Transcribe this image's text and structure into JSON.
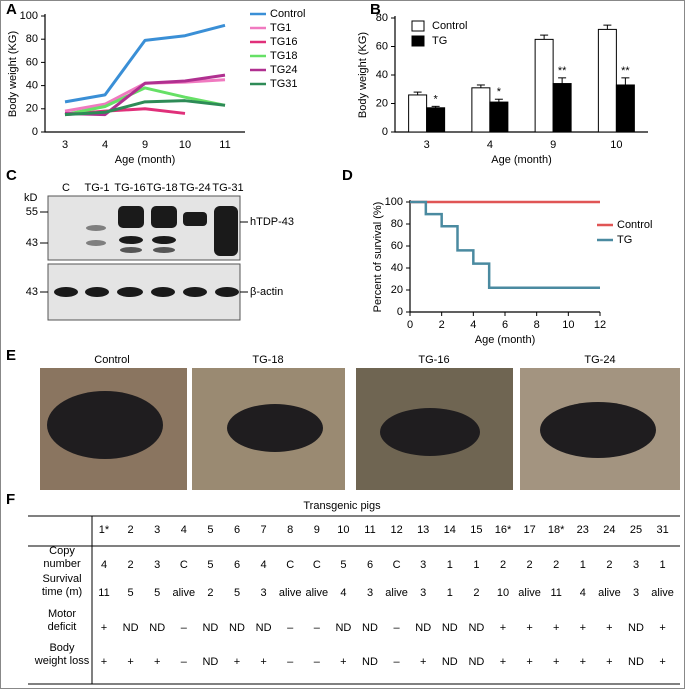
{
  "panel_labels": [
    "A",
    "B",
    "C",
    "D",
    "E",
    "F"
  ],
  "chart_data": [
    {
      "type": "line",
      "xlabel": "Age (month)",
      "ylabel": "Body weight (KG)",
      "categories": [
        "3",
        "4",
        "9",
        "10",
        "11"
      ],
      "ylim": [
        0,
        100
      ],
      "yticks": [
        0,
        20,
        40,
        60,
        80,
        100
      ],
      "series": [
        {
          "name": "Control",
          "color": "#3a8fd6",
          "values": [
            26,
            32,
            79,
            83,
            92
          ]
        },
        {
          "name": "TG1",
          "color": "#f07ac0",
          "values": [
            18,
            24,
            42,
            43,
            45
          ]
        },
        {
          "name": "TG16",
          "color": "#e0307a",
          "values": [
            15,
            18,
            20,
            16,
            null
          ]
        },
        {
          "name": "TG18",
          "color": "#66e066",
          "values": [
            15,
            22,
            38,
            30,
            23
          ]
        },
        {
          "name": "TG24",
          "color": "#b03090",
          "values": [
            16,
            15,
            42,
            44,
            49
          ]
        },
        {
          "name": "TG31",
          "color": "#2e8b57",
          "values": [
            15,
            17,
            26,
            27,
            23
          ]
        }
      ]
    },
    {
      "type": "bar",
      "xlabel": "Age (month)",
      "ylabel": "Body weight (KG)",
      "categories": [
        "3",
        "4",
        "9",
        "10"
      ],
      "ylim": [
        0,
        80
      ],
      "yticks": [
        0,
        20,
        40,
        60,
        80
      ],
      "annotations": [
        "*",
        "*",
        "**",
        "**"
      ],
      "series": [
        {
          "name": "Control",
          "color": "#ffffff",
          "values": [
            26,
            31,
            65,
            72
          ],
          "errors": [
            2,
            2,
            3,
            3
          ]
        },
        {
          "name": "TG",
          "color": "#000000",
          "values": [
            17,
            21,
            34,
            33
          ],
          "errors": [
            1,
            2,
            4,
            5
          ]
        }
      ]
    },
    {
      "type": "step",
      "xlabel": "Age (month)",
      "ylabel": "Percent of survival (%)",
      "xlim": [
        0,
        12
      ],
      "xticks": [
        0,
        2,
        4,
        6,
        8,
        10,
        12
      ],
      "ylim": [
        0,
        100
      ],
      "yticks": [
        0,
        20,
        40,
        60,
        80,
        100
      ],
      "series": [
        {
          "name": "Control",
          "color": "#e05555",
          "x": [
            0,
            12
          ],
          "values": [
            100,
            100
          ]
        },
        {
          "name": "TG",
          "color": "#4a8aa0",
          "x": [
            0,
            1,
            1,
            2,
            2,
            3,
            3,
            4,
            4,
            5,
            5,
            12
          ],
          "values": [
            100,
            100,
            89,
            89,
            78,
            78,
            56,
            56,
            44,
            44,
            22,
            22
          ]
        }
      ]
    }
  ],
  "blot": {
    "unit": "kD",
    "lanes": [
      "C",
      "TG-1",
      "TG-16",
      "TG-18",
      "TG-24",
      "TG-31"
    ],
    "markers": [
      "55",
      "43",
      "43"
    ],
    "targets": [
      "hTDP-43",
      "β-actin"
    ]
  },
  "photos": {
    "labels": [
      "Control",
      "TG-18",
      "TG-16",
      "TG-24"
    ]
  },
  "table": {
    "title": "Transgenic pigs",
    "columns": [
      "1*",
      "2",
      "3",
      "4",
      "5",
      "6",
      "7",
      "8",
      "9",
      "10",
      "11",
      "12",
      "13",
      "14",
      "15",
      "16*",
      "17",
      "18*",
      "23",
      "24",
      "25",
      "31"
    ],
    "row_labels": [
      [
        "Copy",
        "number"
      ],
      [
        "Survival",
        "time (m)"
      ],
      [
        "Motor",
        "deficit"
      ],
      [
        "Body",
        "weight loss"
      ]
    ],
    "rows": [
      [
        "4",
        "2",
        "3",
        "C",
        "5",
        "6",
        "4",
        "C",
        "C",
        "5",
        "6",
        "C",
        "3",
        "1",
        "1",
        "2",
        "2",
        "2",
        "1",
        "2",
        "3",
        "1"
      ],
      [
        "11",
        "5",
        "5",
        "alive",
        "2",
        "5",
        "3",
        "alive",
        "alive",
        "4",
        "3",
        "alive",
        "3",
        "1",
        "2",
        "10",
        "alive",
        "11",
        "4",
        "alive",
        "3",
        "alive"
      ],
      [
        "+",
        "ND",
        "ND",
        "–",
        "ND",
        "ND",
        "ND",
        "–",
        "–",
        "ND",
        "ND",
        "–",
        "ND",
        "ND",
        "ND",
        "+",
        "+",
        "+",
        "+",
        "+",
        "ND",
        "+"
      ],
      [
        "+",
        "+",
        "+",
        "–",
        "ND",
        "+",
        "+",
        "–",
        "–",
        "+",
        "ND",
        "–",
        "+",
        "ND",
        "ND",
        "+",
        "+",
        "+",
        "+",
        "+",
        "ND",
        "+"
      ]
    ]
  }
}
